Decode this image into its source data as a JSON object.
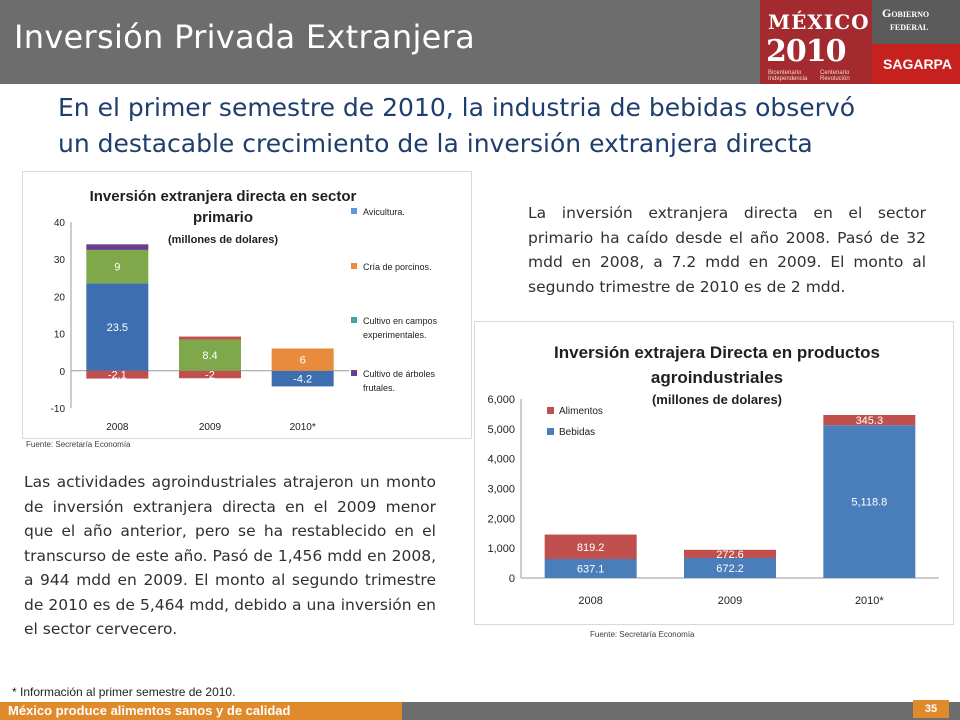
{
  "header": {
    "title": "Inversión Privada Extranjera",
    "mexico_logo": {
      "word": "MÉXICO",
      "year": "2010",
      "left_caption": "Bicentenario Independencia",
      "right_caption": "Centenario Revolución",
      "color": "#a32a2e"
    },
    "gobierno": {
      "line1": "Gobierno",
      "line2": "federal"
    },
    "sagarpa": "SAGARPA"
  },
  "headline": "En el primer semestre de 2010, la industria de bebidas observó un destacable crecimiento de la inversión extranjera directa",
  "chart1": {
    "source": "Fuente: Secretaría Economía",
    "chart_data": {
      "type": "bar",
      "stacked": true,
      "title": "Inversión extranjera directa en sector primario",
      "subtitle": "(millones de dolares)",
      "categories": [
        "2008",
        "2009",
        "2010*"
      ],
      "yticks": [
        "40",
        "30",
        "20",
        "10",
        "0",
        "-10"
      ],
      "ylim": [
        -10,
        40
      ],
      "legend_position": "right",
      "series": [
        {
          "name": "Avicultura.",
          "color": "#5b9bd5",
          "values": [
            0,
            0,
            0
          ],
          "labels": [
            "",
            "",
            ""
          ]
        },
        {
          "name": "Cría de porcinos.",
          "color": "#e88b3c",
          "values": [
            0,
            0,
            6
          ],
          "labels": [
            "",
            "",
            "6"
          ]
        },
        {
          "name": "Cultivo en campos experimentales.",
          "color": "#3fa7a2",
          "values": [
            0,
            0,
            0
          ],
          "labels": [
            "",
            "",
            ""
          ]
        },
        {
          "name": "Cultivo de árboles frutales.",
          "color": "#6a3d8f",
          "values": [
            1.5,
            0,
            0
          ],
          "labels": [
            "",
            "",
            ""
          ]
        }
      ],
      "unlabeled_series": [
        {
          "color": "#3d6fb0",
          "values": [
            23.5,
            0,
            -4.2
          ],
          "labels": [
            "23.5",
            "",
            "-4.2"
          ]
        },
        {
          "color": "#7ea84a",
          "values": [
            9,
            8.4,
            0
          ],
          "labels": [
            "9",
            "8.4",
            ""
          ]
        },
        {
          "color": "#c0504d",
          "values": [
            -2.1,
            -2,
            0
          ],
          "labels": [
            "-2.1",
            "-2",
            ""
          ]
        },
        {
          "color": "#c0504d",
          "values": [
            0,
            0.8,
            0
          ],
          "labels": [
            "",
            "",
            ""
          ]
        }
      ]
    }
  },
  "text1": "La inversión extranjera directa en el sector primario ha caído desde el año 2008. Pasó de 32 mdd en 2008, a 7.2 mdd en 2009. El monto al segundo trimestre de 2010 es de 2 mdd.",
  "chart2": {
    "source": "Fuente: Secretaría Economía",
    "chart_data": {
      "type": "bar",
      "stacked": true,
      "title": "Inversión extrajera Directa en productos agroindustriales",
      "subtitle": "(millones de dolares)",
      "categories": [
        "2008",
        "2009",
        "2010*"
      ],
      "yticks": [
        "6,000",
        "5,000",
        "4,000",
        "3,000",
        "2,000",
        "1,000",
        "0"
      ],
      "ylim": [
        0,
        6000
      ],
      "legend_position": "top-left",
      "series": [
        {
          "name": "Alimentos",
          "color": "#c0504d",
          "values": [
            819.2,
            272.6,
            345.3
          ],
          "labels": [
            "819.2",
            "272.6",
            "345.3"
          ]
        },
        {
          "name": "Bebidas",
          "color": "#4a7ebb",
          "values": [
            637.1,
            672.2,
            5118.8
          ],
          "labels": [
            "637.1",
            "672.2",
            "5,118.8"
          ]
        }
      ]
    }
  },
  "text2": "Las actividades agroindustriales atrajeron un monto de inversión extranjera directa en el 2009 menor que el año anterior, pero se ha restablecido en el transcurso de este año. Pasó de 1,456 mdd en 2008, a 944 mdd en 2009. El monto al segundo trimestre de 2010 es de 5,464 mdd, debido a una inversión en el sector cervecero.",
  "footnote": "* Información al primer semestre de 2010.",
  "footer": {
    "slogan": "México produce alimentos sanos y de calidad",
    "page_number": "35"
  }
}
